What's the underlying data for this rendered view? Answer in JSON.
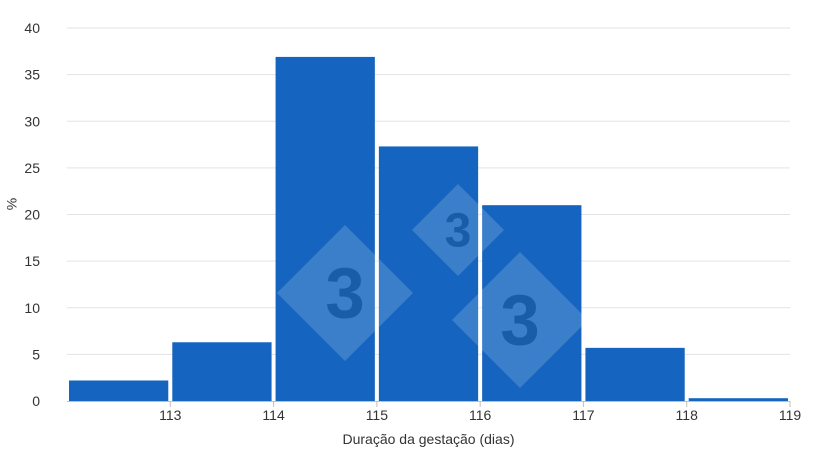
{
  "chart_data": {
    "type": "bar",
    "title": "",
    "xlabel": "Duração da gestação (dias)",
    "ylabel": "%",
    "ylim": [
      0,
      40
    ],
    "yticks": [
      0,
      5,
      10,
      15,
      20,
      25,
      30,
      35,
      40
    ],
    "xlim": [
      112,
      119
    ],
    "xticks": [
      113,
      114,
      115,
      116,
      117,
      118,
      119
    ],
    "bins": [
      {
        "start": 112,
        "end": 113,
        "value": 2.2
      },
      {
        "start": 113,
        "end": 114,
        "value": 6.3
      },
      {
        "start": 114,
        "end": 115,
        "value": 36.9
      },
      {
        "start": 115,
        "end": 116,
        "value": 27.3
      },
      {
        "start": 116,
        "end": 117,
        "value": 21.0
      },
      {
        "start": 117,
        "end": 118,
        "value": 5.7
      },
      {
        "start": 118,
        "end": 119,
        "value": 0.3
      }
    ],
    "grid": true,
    "bar_color": "#1565c0",
    "gridline_color": "#e3e3e3",
    "watermark_logo": "3tres3"
  }
}
